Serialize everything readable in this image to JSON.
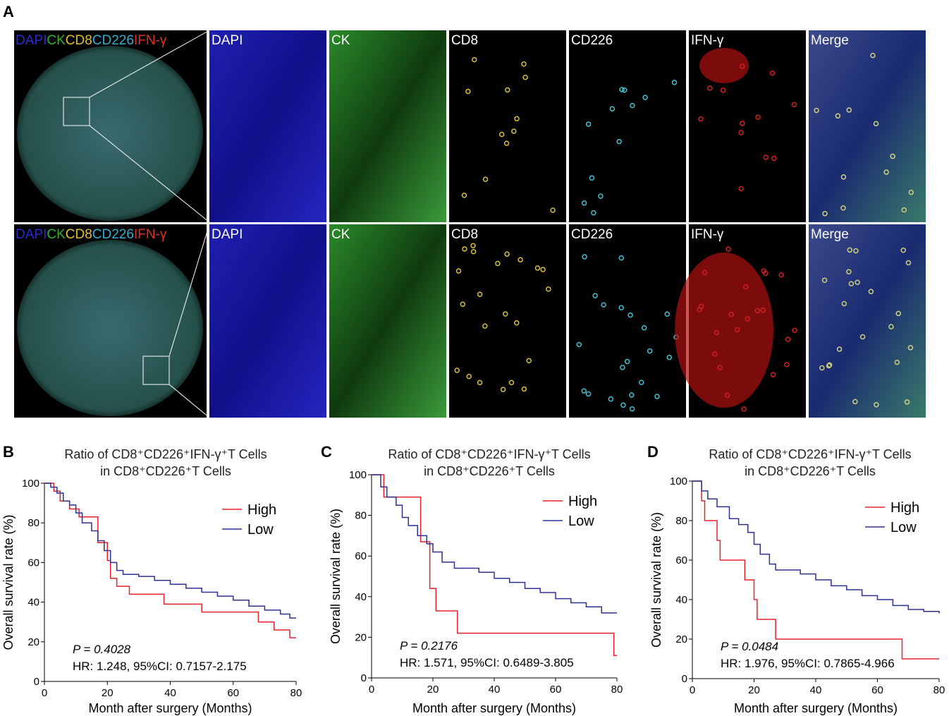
{
  "figure": {
    "panel_a": {
      "label": "A",
      "overview_labels": [
        "DAPI",
        "CK",
        "CD8",
        "CD226",
        "IFN-γ"
      ],
      "channels": [
        "DAPI",
        "CK",
        "CD8",
        "CD226",
        "IFN-γ",
        "Merge"
      ]
    }
  },
  "chart_data": [
    {
      "panel": "B",
      "type": "line",
      "title": [
        "Ratio of CD8⁺CD226⁺IFN-γ⁺T Cells",
        "in CD8⁺CD226⁺T Cells"
      ],
      "x_label": "Month after surgery (Months)",
      "y_label": "Overall survival rate (%)",
      "xlim": [
        0,
        80
      ],
      "xticks": [
        0,
        20,
        40,
        60,
        80
      ],
      "ylim": [
        0,
        100
      ],
      "yticks": [
        0,
        20,
        40,
        60,
        80,
        100
      ],
      "legend": "upper right",
      "annotations": [
        "P = 0.4028",
        "HR: 1.248, 95%CI: 0.7157-2.175"
      ],
      "series": [
        {
          "name": "High",
          "color": "#e8202a",
          "x": [
            0,
            3,
            5,
            8,
            11,
            17,
            20,
            21,
            23,
            27,
            38,
            50,
            68,
            73,
            78,
            80
          ],
          "values": [
            100,
            96,
            91,
            87,
            83,
            70,
            61,
            52,
            48,
            44,
            39,
            35,
            30,
            26,
            22,
            22
          ]
        },
        {
          "name": "Low",
          "color": "#2e3192",
          "x": [
            0,
            2,
            4,
            6,
            8,
            10,
            12,
            15,
            17,
            19,
            21,
            23,
            25,
            30,
            35,
            40,
            45,
            50,
            55,
            60,
            65,
            70,
            75,
            78,
            80
          ],
          "values": [
            100,
            98,
            95,
            91,
            89,
            85,
            80,
            76,
            71,
            66,
            60,
            56,
            54,
            53,
            51,
            49,
            47,
            45,
            43,
            41,
            38,
            36,
            34,
            32,
            32
          ]
        }
      ]
    },
    {
      "panel": "C",
      "type": "line",
      "title": [
        "Ratio of CD8⁺CD226⁺IFN-γ⁺T Cells",
        "in CD8⁺CD226⁺T Cells"
      ],
      "x_label": "Month after surgery (Months)",
      "y_label": "Overall survival rate (%)",
      "xlim": [
        0,
        80
      ],
      "xticks": [
        0,
        20,
        40,
        60,
        80
      ],
      "ylim": [
        0,
        100
      ],
      "yticks": [
        0,
        20,
        40,
        60,
        80,
        100
      ],
      "legend": "upper right",
      "annotations": [
        "P = 0.2176",
        "HR: 1.571, 95%CI: 0.6489-3.805"
      ],
      "series": [
        {
          "name": "High",
          "color": "#e8202a",
          "x": [
            0,
            4,
            16,
            19,
            21,
            28,
            79,
            80
          ],
          "values": [
            100,
            89,
            67,
            44,
            33,
            22,
            11,
            11
          ]
        },
        {
          "name": "Low",
          "color": "#2e3192",
          "x": [
            0,
            3,
            5,
            8,
            10,
            12,
            15,
            18,
            20,
            23,
            27,
            35,
            40,
            45,
            50,
            55,
            60,
            65,
            70,
            75,
            80
          ],
          "values": [
            100,
            94,
            89,
            85,
            79,
            75,
            70,
            66,
            62,
            57,
            54,
            52,
            49,
            47,
            44,
            42,
            39,
            37,
            35,
            32,
            32
          ]
        }
      ]
    },
    {
      "panel": "D",
      "type": "line",
      "title": [
        "Ratio of CD8⁺CD226⁺IFN-γ⁺T Cells",
        "in CD8⁺CD226⁺T Cells"
      ],
      "x_label": "Month after surgery (Months)",
      "y_label": "Overall survival rate (%)",
      "xlim": [
        0,
        80
      ],
      "xticks": [
        0,
        20,
        40,
        60,
        80
      ],
      "ylim": [
        0,
        100
      ],
      "yticks": [
        0,
        20,
        40,
        60,
        80,
        100
      ],
      "legend": "upper right",
      "annotations": [
        "P = 0.0484",
        "HR: 1.976, 95%CI: 0.7865-4.966"
      ],
      "series": [
        {
          "name": "High",
          "color": "#e8202a",
          "x": [
            0,
            3,
            4,
            8,
            9,
            17,
            20,
            21,
            27,
            68,
            80
          ],
          "values": [
            100,
            90,
            80,
            70,
            60,
            50,
            40,
            30,
            20,
            10,
            10
          ]
        },
        {
          "name": "Low",
          "color": "#2e3192",
          "x": [
            0,
            3,
            5,
            8,
            12,
            15,
            18,
            20,
            22,
            25,
            27,
            35,
            40,
            45,
            50,
            55,
            60,
            65,
            70,
            75,
            80
          ],
          "values": [
            100,
            95,
            91,
            87,
            81,
            78,
            74,
            68,
            63,
            58,
            55,
            53,
            50,
            47,
            45,
            42,
            40,
            37,
            35,
            34,
            33
          ]
        }
      ]
    }
  ]
}
